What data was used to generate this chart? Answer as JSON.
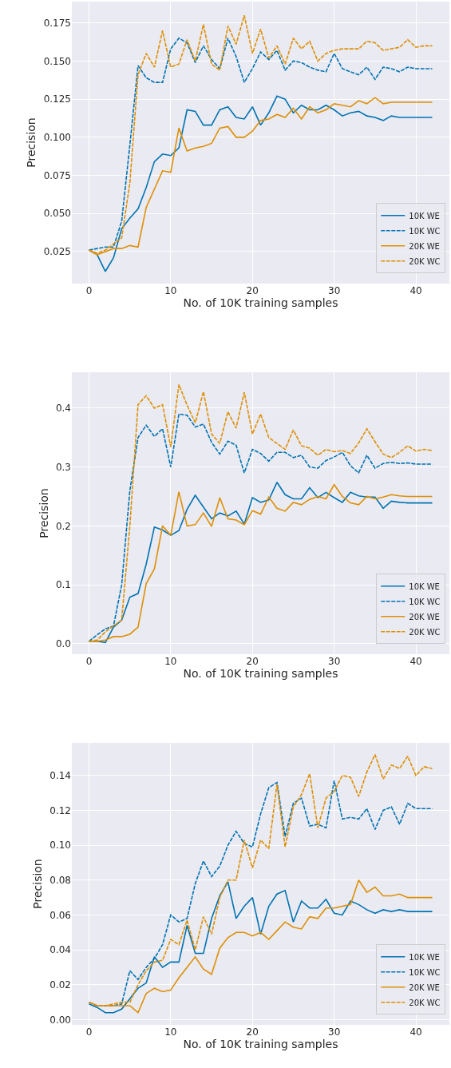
{
  "chart_data": [
    {
      "type": "line",
      "xlabel": "No. of 10K training samples",
      "ylabel": "Precision",
      "grid": true,
      "legend": "bottom right",
      "marker": "none",
      "x": [
        0,
        1,
        2,
        3,
        4,
        5,
        6,
        7,
        8,
        9,
        10,
        11,
        12,
        13,
        14,
        15,
        16,
        17,
        18,
        19,
        20,
        21,
        22,
        23,
        24,
        25,
        26,
        27,
        28,
        29,
        30,
        31,
        32,
        33,
        34,
        35,
        36,
        37,
        38,
        39,
        40,
        41,
        42
      ],
      "xlim": [
        -2.1,
        44.1
      ],
      "xticks": [
        0,
        10,
        20,
        30,
        40
      ],
      "ylim": [
        0.004,
        0.189
      ],
      "yticks": [
        {
          "value": 0.025,
          "label": "0.025"
        },
        {
          "value": 0.05,
          "label": "0.050"
        },
        {
          "value": 0.075,
          "label": "0.075"
        },
        {
          "value": 0.1,
          "label": "0.100"
        },
        {
          "value": 0.125,
          "label": "0.125"
        },
        {
          "value": 0.15,
          "label": "0.150"
        },
        {
          "value": 0.175,
          "label": "0.175"
        }
      ],
      "series": [
        {
          "name": "10K WE",
          "color": "#0173b2",
          "line_style": "solid",
          "values": [
            0.026,
            0.023,
            0.012,
            0.021,
            0.04,
            0.047,
            0.053,
            0.067,
            0.084,
            0.089,
            0.088,
            0.093,
            0.118,
            0.117,
            0.108,
            0.108,
            0.118,
            0.12,
            0.113,
            0.112,
            0.12,
            0.108,
            0.116,
            0.127,
            0.125,
            0.116,
            0.121,
            0.118,
            0.118,
            0.121,
            0.118,
            0.114,
            0.116,
            0.117,
            0.114,
            0.113,
            0.111,
            0.114,
            0.113,
            0.113,
            0.113,
            0.113,
            0.113
          ]
        },
        {
          "name": "10K WC",
          "color": "#0173b2",
          "line_style": "dashed",
          "values": [
            0.026,
            0.027,
            0.028,
            0.028,
            0.045,
            0.095,
            0.147,
            0.139,
            0.136,
            0.136,
            0.158,
            0.165,
            0.162,
            0.149,
            0.16,
            0.151,
            0.145,
            0.165,
            0.153,
            0.136,
            0.145,
            0.156,
            0.151,
            0.157,
            0.144,
            0.15,
            0.149,
            0.146,
            0.144,
            0.143,
            0.155,
            0.145,
            0.143,
            0.141,
            0.146,
            0.138,
            0.146,
            0.145,
            0.143,
            0.146,
            0.145,
            0.145,
            0.145
          ]
        },
        {
          "name": "20K WE",
          "color": "#de8f05",
          "line_style": "solid",
          "values": [
            0.026,
            0.023,
            0.025,
            0.027,
            0.027,
            0.029,
            0.028,
            0.054,
            0.066,
            0.078,
            0.077,
            0.106,
            0.091,
            0.093,
            0.094,
            0.096,
            0.106,
            0.107,
            0.1,
            0.1,
            0.104,
            0.111,
            0.112,
            0.115,
            0.113,
            0.119,
            0.112,
            0.12,
            0.116,
            0.118,
            0.122,
            0.121,
            0.12,
            0.124,
            0.122,
            0.126,
            0.122,
            0.123,
            0.123,
            0.123,
            0.123,
            0.123,
            0.123
          ]
        },
        {
          "name": "20K WC",
          "color": "#de8f05",
          "line_style": "dashed",
          "values": [
            0.026,
            0.024,
            0.026,
            0.03,
            0.034,
            0.07,
            0.141,
            0.155,
            0.146,
            0.17,
            0.146,
            0.148,
            0.164,
            0.15,
            0.174,
            0.148,
            0.144,
            0.173,
            0.161,
            0.18,
            0.155,
            0.171,
            0.152,
            0.16,
            0.148,
            0.165,
            0.158,
            0.163,
            0.15,
            0.155,
            0.157,
            0.158,
            0.158,
            0.158,
            0.163,
            0.162,
            0.157,
            0.158,
            0.159,
            0.164,
            0.159,
            0.16,
            0.16
          ]
        }
      ]
    },
    {
      "type": "line",
      "xlabel": "No. of 10K training samples",
      "ylabel": "Precision",
      "grid": true,
      "legend": "bottom right",
      "marker": "none",
      "x": [
        0,
        1,
        2,
        3,
        4,
        5,
        6,
        7,
        8,
        9,
        10,
        11,
        12,
        13,
        14,
        15,
        16,
        17,
        18,
        19,
        20,
        21,
        22,
        23,
        24,
        25,
        26,
        27,
        28,
        29,
        30,
        31,
        32,
        33,
        34,
        35,
        36,
        37,
        38,
        39,
        40,
        41,
        42
      ],
      "xlim": [
        -2.1,
        44.1
      ],
      "xticks": [
        0,
        10,
        20,
        30,
        40
      ],
      "ylim": [
        -0.018,
        0.461
      ],
      "yticks": [
        {
          "value": 0,
          "label": "0.0"
        },
        0.1,
        0.2,
        0.3,
        0.4
      ],
      "series": [
        {
          "name": "10K WE",
          "color": "#0173b2",
          "line_style": "solid",
          "values": [
            0.004,
            0.004,
            0.002,
            0.028,
            0.04,
            0.079,
            0.085,
            0.135,
            0.198,
            0.193,
            0.184,
            0.192,
            0.228,
            0.252,
            0.232,
            0.212,
            0.222,
            0.217,
            0.225,
            0.203,
            0.248,
            0.24,
            0.244,
            0.274,
            0.253,
            0.246,
            0.246,
            0.265,
            0.248,
            0.257,
            0.248,
            0.24,
            0.257,
            0.251,
            0.249,
            0.249,
            0.23,
            0.242,
            0.24,
            0.239,
            0.239,
            0.239,
            0.239
          ]
        },
        {
          "name": "10K WC",
          "color": "#0173b2",
          "line_style": "dashed",
          "values": [
            0.004,
            0.015,
            0.025,
            0.03,
            0.1,
            0.26,
            0.35,
            0.371,
            0.352,
            0.365,
            0.3,
            0.39,
            0.388,
            0.368,
            0.373,
            0.342,
            0.322,
            0.344,
            0.337,
            0.29,
            0.33,
            0.323,
            0.31,
            0.325,
            0.325,
            0.316,
            0.32,
            0.3,
            0.298,
            0.311,
            0.317,
            0.325,
            0.302,
            0.29,
            0.32,
            0.298,
            0.306,
            0.308,
            0.306,
            0.307,
            0.305,
            0.305,
            0.305
          ]
        },
        {
          "name": "20K WE",
          "color": "#de8f05",
          "line_style": "solid",
          "values": [
            0.004,
            0.004,
            0.006,
            0.012,
            0.012,
            0.016,
            0.028,
            0.102,
            0.127,
            0.2,
            0.184,
            0.258,
            0.2,
            0.202,
            0.222,
            0.199,
            0.248,
            0.212,
            0.21,
            0.202,
            0.226,
            0.22,
            0.249,
            0.23,
            0.225,
            0.24,
            0.236,
            0.245,
            0.25,
            0.246,
            0.27,
            0.25,
            0.239,
            0.236,
            0.25,
            0.246,
            0.249,
            0.253,
            0.251,
            0.25,
            0.25,
            0.25,
            0.25
          ]
        },
        {
          "name": "20K WC",
          "color": "#de8f05",
          "line_style": "dashed",
          "values": [
            0.004,
            0.006,
            0.02,
            0.03,
            0.04,
            0.2,
            0.406,
            0.421,
            0.4,
            0.406,
            0.334,
            0.44,
            0.405,
            0.375,
            0.428,
            0.356,
            0.34,
            0.394,
            0.366,
            0.427,
            0.356,
            0.39,
            0.35,
            0.34,
            0.33,
            0.363,
            0.336,
            0.332,
            0.32,
            0.33,
            0.326,
            0.328,
            0.323,
            0.341,
            0.365,
            0.343,
            0.322,
            0.316,
            0.325,
            0.336,
            0.327,
            0.33,
            0.328
          ]
        }
      ]
    },
    {
      "type": "line",
      "xlabel": "No. of 10K training samples",
      "ylabel": "Precision",
      "grid": true,
      "legend": "bottom right",
      "marker": "none",
      "x": [
        0,
        1,
        2,
        3,
        4,
        5,
        6,
        7,
        8,
        9,
        10,
        11,
        12,
        13,
        14,
        15,
        16,
        17,
        18,
        19,
        20,
        21,
        22,
        23,
        24,
        25,
        26,
        27,
        28,
        29,
        30,
        31,
        32,
        33,
        34,
        35,
        36,
        37,
        38,
        39,
        40,
        41,
        42
      ],
      "xlim": [
        -2.1,
        44.1
      ],
      "xticks": [
        0,
        10,
        20,
        30,
        40
      ],
      "ylim": [
        -0.003,
        0.1587
      ],
      "yticks": [
        {
          "value": 0,
          "label": "0.00"
        },
        {
          "value": 0.02,
          "label": "0.02"
        },
        {
          "value": 0.04,
          "label": "0.04"
        },
        {
          "value": 0.06,
          "label": "0.06"
        },
        {
          "value": 0.08,
          "label": "0.08"
        },
        {
          "value": 0.1,
          "label": "0.10"
        },
        {
          "value": 0.12,
          "label": "0.12"
        },
        {
          "value": 0.14,
          "label": "0.14"
        }
      ],
      "series": [
        {
          "name": "10K WE",
          "color": "#0173b2",
          "line_style": "solid",
          "values": [
            0.009,
            0.007,
            0.004,
            0.004,
            0.006,
            0.012,
            0.018,
            0.021,
            0.036,
            0.03,
            0.033,
            0.033,
            0.054,
            0.038,
            0.038,
            0.058,
            0.071,
            0.079,
            0.058,
            0.065,
            0.07,
            0.049,
            0.065,
            0.072,
            0.074,
            0.056,
            0.068,
            0.064,
            0.064,
            0.069,
            0.061,
            0.06,
            0.068,
            0.066,
            0.063,
            0.061,
            0.063,
            0.062,
            0.063,
            0.062,
            0.062,
            0.062,
            0.062
          ]
        },
        {
          "name": "10K WC",
          "color": "#0173b2",
          "line_style": "dashed",
          "values": [
            0.01,
            0.008,
            0.008,
            0.008,
            0.009,
            0.028,
            0.023,
            0.03,
            0.035,
            0.043,
            0.06,
            0.056,
            0.058,
            0.078,
            0.091,
            0.082,
            0.088,
            0.1,
            0.108,
            0.101,
            0.099,
            0.118,
            0.133,
            0.136,
            0.105,
            0.124,
            0.127,
            0.111,
            0.112,
            0.11,
            0.137,
            0.115,
            0.116,
            0.115,
            0.121,
            0.109,
            0.12,
            0.122,
            0.112,
            0.124,
            0.121,
            0.121,
            0.121
          ]
        },
        {
          "name": "20K WE",
          "color": "#de8f05",
          "line_style": "solid",
          "values": [
            0.01,
            0.008,
            0.008,
            0.008,
            0.008,
            0.008,
            0.004,
            0.015,
            0.018,
            0.016,
            0.017,
            0.024,
            0.03,
            0.036,
            0.029,
            0.026,
            0.041,
            0.047,
            0.05,
            0.05,
            0.048,
            0.05,
            0.046,
            0.051,
            0.056,
            0.053,
            0.052,
            0.059,
            0.058,
            0.064,
            0.064,
            0.065,
            0.066,
            0.08,
            0.073,
            0.076,
            0.071,
            0.071,
            0.072,
            0.07,
            0.07,
            0.07,
            0.07
          ]
        },
        {
          "name": "20K WC",
          "color": "#de8f05",
          "line_style": "dashed",
          "values": [
            0.01,
            0.008,
            0.008,
            0.009,
            0.01,
            0.01,
            0.02,
            0.028,
            0.033,
            0.034,
            0.046,
            0.043,
            0.057,
            0.04,
            0.059,
            0.049,
            0.07,
            0.08,
            0.08,
            0.103,
            0.087,
            0.103,
            0.098,
            0.135,
            0.099,
            0.122,
            0.129,
            0.141,
            0.11,
            0.127,
            0.131,
            0.14,
            0.139,
            0.128,
            0.142,
            0.152,
            0.138,
            0.146,
            0.144,
            0.151,
            0.14,
            0.145,
            0.144
          ]
        }
      ]
    }
  ]
}
